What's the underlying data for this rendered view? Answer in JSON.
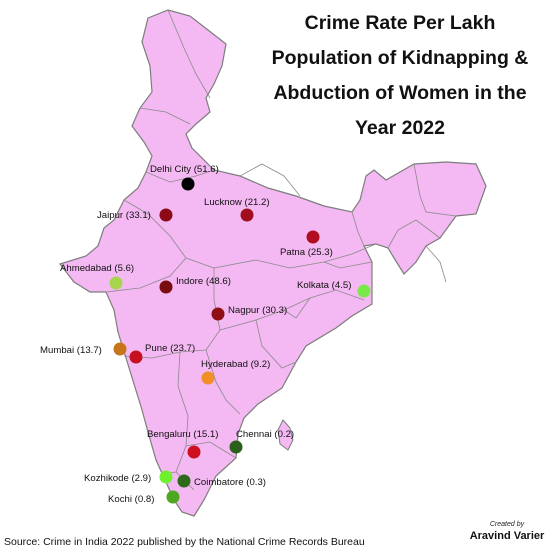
{
  "title_lines": [
    "Crime Rate Per Lakh",
    "Population of Kidnapping &",
    "Abduction of Women in the",
    "Year 2022"
  ],
  "source": "Source: Crime in India 2022 published by the National Crime Records Bureau",
  "credit": {
    "label": "Created by",
    "name": "Aravind Varier"
  },
  "colors": {
    "land": "#f4b8f2",
    "border": "#7d7d7d"
  },
  "cities": [
    {
      "name": "Delhi City",
      "rate": 51.6,
      "label": "Delhi City (51.6)",
      "color": "#000000"
    },
    {
      "name": "Jaipur",
      "rate": 33.1,
      "label": "Jaipur (33.1)",
      "color": "#8b0a16"
    },
    {
      "name": "Lucknow",
      "rate": 21.2,
      "label": "Lucknow (21.2)",
      "color": "#a00d1c"
    },
    {
      "name": "Patna",
      "rate": 25.3,
      "label": "Patna (25.3)",
      "color": "#b00e1e"
    },
    {
      "name": "Ahmedabad",
      "rate": 5.6,
      "label": "Ahmedabad (5.6)",
      "color": "#a7d64e"
    },
    {
      "name": "Indore",
      "rate": 48.6,
      "label": "Indore (48.6)",
      "color": "#7a0d10"
    },
    {
      "name": "Kolkata",
      "rate": 4.5,
      "label": "Kolkata (4.5)",
      "color": "#7be84a"
    },
    {
      "name": "Nagpur",
      "rate": 30.3,
      "label": "Nagpur (30.3)",
      "color": "#8e0f14"
    },
    {
      "name": "Mumbai",
      "rate": 13.7,
      "label": "Mumbai (13.7)",
      "color": "#c8741a"
    },
    {
      "name": "Pune",
      "rate": 23.7,
      "label": "Pune (23.7)",
      "color": "#c5101f"
    },
    {
      "name": "Hyderabad",
      "rate": 9.2,
      "label": "Hyderabad (9.2)",
      "color": "#f18e25"
    },
    {
      "name": "Bengaluru",
      "rate": 15.1,
      "label": "Bengaluru (15.1)",
      "color": "#cf1021"
    },
    {
      "name": "Chennai",
      "rate": 0.2,
      "label": "Chennai (0.2)",
      "color": "#2a5f1c"
    },
    {
      "name": "Kozhikode",
      "rate": 2.9,
      "label": "Kozhikode (2.9)",
      "color": "#6ef02e"
    },
    {
      "name": "Coimbatore",
      "rate": 0.3,
      "label": "Coimbatore (0.3)",
      "color": "#2f6a1c"
    },
    {
      "name": "Kochi",
      "rate": 0.8,
      "label": "Kochi (0.8)",
      "color": "#4ea71e"
    }
  ]
}
